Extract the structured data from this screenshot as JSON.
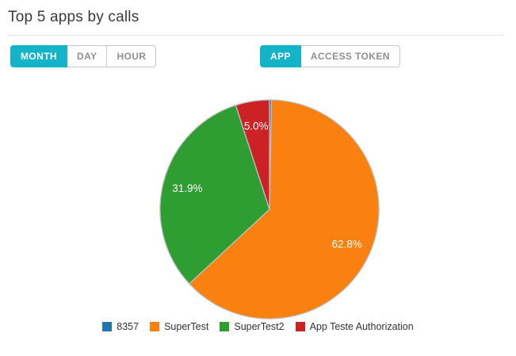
{
  "header": {
    "title": "Top 5 apps by calls"
  },
  "controls": {
    "time_group": [
      {
        "label": "MONTH",
        "active": true
      },
      {
        "label": "DAY",
        "active": false
      },
      {
        "label": "HOUR",
        "active": false
      }
    ],
    "type_group": [
      {
        "label": "APP",
        "active": true
      },
      {
        "label": "ACCESS TOKEN",
        "active": false
      }
    ]
  },
  "colors": {
    "accent": "#14b4c8",
    "slice_stroke": "#bdbdbd",
    "title_text": "#3a3a3a",
    "inactive_button_text": "#8f8f8f",
    "legend_text": "#333333"
  },
  "chart_data": {
    "type": "pie",
    "title": "Top 5 apps by calls",
    "direction": "clockwise",
    "start_angle_deg": 0,
    "legend_position": "bottom",
    "labels_inside": true,
    "slices": [
      {
        "label": "8357",
        "value": 0.3,
        "display": "",
        "color": "#2176b0"
      },
      {
        "label": "SuperTest",
        "value": 62.8,
        "display": "62.8%",
        "color": "#fa800f"
      },
      {
        "label": "SuperTest2",
        "value": 31.9,
        "display": "31.9%",
        "color": "#2f9e32"
      },
      {
        "label": "App Teste Authorization",
        "value": 5.0,
        "display": "5.0%",
        "color": "#cc2226"
      }
    ]
  }
}
